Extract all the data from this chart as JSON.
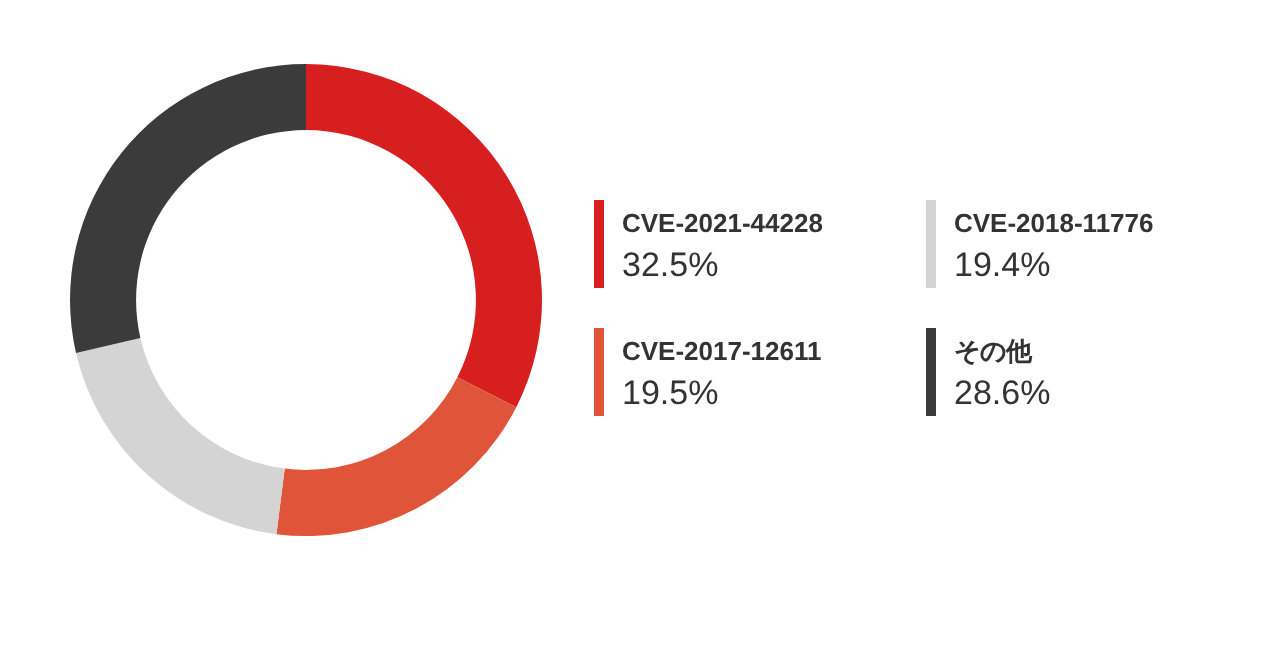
{
  "chart_data": {
    "type": "donut",
    "categories": [
      "CVE-2021-44228",
      "CVE-2017-12611",
      "CVE-2018-11776",
      "その他"
    ],
    "values": [
      32.5,
      19.5,
      19.4,
      28.6
    ],
    "colors": [
      "#d71f20",
      "#e0553a",
      "#d4d4d4",
      "#3b3b3b"
    ],
    "value_labels": [
      "32.5%",
      "19.5%",
      "19.4%",
      "28.6%"
    ],
    "legend": "right"
  }
}
